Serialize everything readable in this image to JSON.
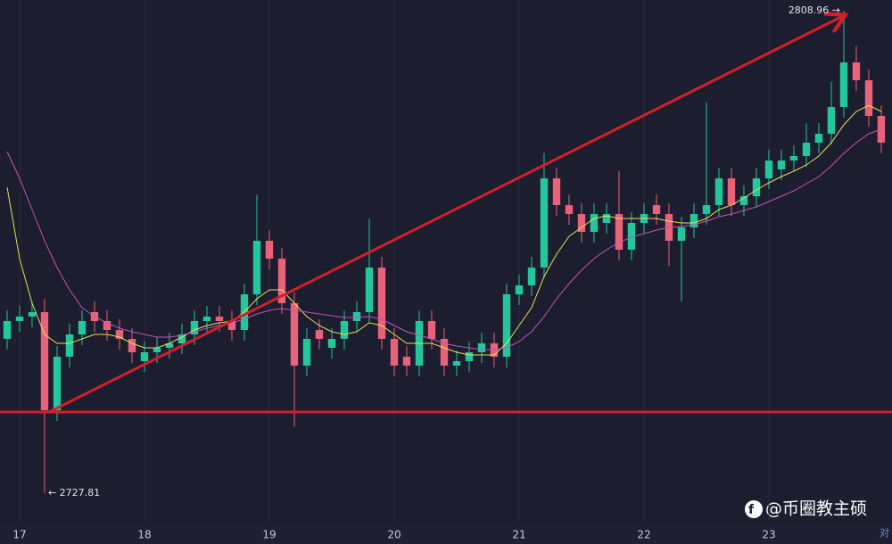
{
  "chart_data": {
    "type": "candlestick",
    "xticks": [
      {
        "value": 1,
        "label": "17"
      },
      {
        "value": 11,
        "label": "18"
      },
      {
        "value": 21,
        "label": "19"
      },
      {
        "value": 31,
        "label": "20"
      },
      {
        "value": 41,
        "label": "21"
      },
      {
        "value": 51,
        "label": "22"
      },
      {
        "value": 61,
        "label": "23"
      }
    ],
    "xlim": [
      -0.57,
      70.86
    ],
    "ylim": [
      2723.0,
      2810.75
    ],
    "grid": true,
    "up_color": "#22c79c",
    "down_color": "#e8627a",
    "open": [
      2753.75,
      2756.75,
      2757.5,
      2758.25,
      2741.75,
      2750.75,
      2754.5,
      2758.25,
      2756.75,
      2755.25,
      2753.75,
      2750.0,
      2751.5,
      2752.25,
      2753.0,
      2754.5,
      2756.75,
      2757.5,
      2756.75,
      2755.25,
      2761.25,
      2770.25,
      2767.25,
      2759.75,
      2749.25,
      2755.25,
      2752.25,
      2753.75,
      2756.75,
      2758.25,
      2765.75,
      2753.75,
      2750.75,
      2749.25,
      2756.75,
      2753.75,
      2749.25,
      2750.0,
      2751.5,
      2753.0,
      2750.75,
      2761.25,
      2762.75,
      2765.75,
      2780.75,
      2776.25,
      2774.75,
      2771.75,
      2773.25,
      2774.75,
      2768.75,
      2773.25,
      2776.25,
      2774.75,
      2770.25,
      2772.5,
      2774.75,
      2776.25,
      2780.75,
      2776.25,
      2777.75,
      2780.75,
      2782.25,
      2783.75,
      2784.5,
      2786.75,
      2788.25,
      2792.75,
      2800.25,
      2797.25,
      2791.25
    ],
    "high": [
      2758.55,
      2759.3,
      2760.05,
      2760.5,
      2752.55,
      2756.3,
      2758.55,
      2760.05,
      2758.55,
      2757.05,
      2755.55,
      2753.3,
      2754.05,
      2754.8,
      2756.3,
      2758.55,
      2759.3,
      2759.3,
      2758.55,
      2763.05,
      2778.0,
      2772.05,
      2769.05,
      2761.55,
      2755.55,
      2757.05,
      2755.55,
      2758.55,
      2760.05,
      2774.0,
      2767.55,
      2755.55,
      2752.55,
      2758.55,
      2758.55,
      2755.55,
      2751.8,
      2753.3,
      2754.8,
      2754.8,
      2763.05,
      2764.55,
      2767.55,
      2785.0,
      2782.55,
      2778.05,
      2776.55,
      2776.55,
      2776.55,
      2782.0,
      2775.05,
      2776.55,
      2778.05,
      2776.55,
      2774.3,
      2776.55,
      2793.5,
      2782.55,
      2782.55,
      2779.55,
      2782.55,
      2785.55,
      2785.55,
      2786.3,
      2790.0,
      2790.05,
      2797.0,
      2808.96,
      2803.0,
      2799.05,
      2793.05
    ],
    "low": [
      2751.95,
      2754.95,
      2755.7,
      2727.81,
      2739.95,
      2748.95,
      2752.7,
      2754.95,
      2753.45,
      2751.95,
      2749.7,
      2748.2,
      2749.7,
      2750.45,
      2751.2,
      2752.7,
      2754.95,
      2754.95,
      2753.45,
      2753.45,
      2759.45,
      2765.45,
      2757.95,
      2739.0,
      2747.45,
      2751.95,
      2750.45,
      2751.95,
      2754.95,
      2756.45,
      2751.95,
      2747.45,
      2747.45,
      2747.45,
      2751.95,
      2747.45,
      2747.45,
      2748.2,
      2749.7,
      2748.95,
      2748.95,
      2759.45,
      2760.95,
      2763.95,
      2774.45,
      2772.95,
      2769.95,
      2769.95,
      2771.45,
      2766.95,
      2766.95,
      2771.45,
      2772.95,
      2766.0,
      2760.0,
      2770.7,
      2772.95,
      2774.45,
      2774.45,
      2774.45,
      2775.95,
      2778.95,
      2780.45,
      2781.95,
      2782.7,
      2784.95,
      2786.45,
      2790.95,
      2795.45,
      2789.45,
      2784.95
    ],
    "close": [
      2756.75,
      2757.5,
      2758.25,
      2741.75,
      2750.75,
      2754.5,
      2756.75,
      2756.75,
      2755.25,
      2753.75,
      2751.5,
      2751.5,
      2752.25,
      2753.0,
      2754.5,
      2756.75,
      2757.5,
      2756.75,
      2755.25,
      2761.25,
      2770.25,
      2767.25,
      2759.75,
      2749.25,
      2753.75,
      2753.75,
      2753.75,
      2756.75,
      2758.25,
      2765.75,
      2753.75,
      2749.25,
      2749.25,
      2756.75,
      2753.75,
      2749.25,
      2750.0,
      2751.5,
      2753.0,
      2750.75,
      2761.25,
      2762.75,
      2765.75,
      2780.75,
      2776.25,
      2774.75,
      2771.75,
      2774.75,
      2774.75,
      2768.75,
      2773.25,
      2774.75,
      2774.75,
      2770.25,
      2772.5,
      2774.75,
      2776.25,
      2780.75,
      2776.25,
      2777.75,
      2780.75,
      2783.75,
      2783.75,
      2784.5,
      2786.75,
      2788.25,
      2792.75,
      2800.25,
      2797.25,
      2791.25,
      2786.75
    ],
    "series": [
      {
        "color": "#e6e05a",
        "values": [
          2779.25,
          2767.25,
          2759.75,
          2754.5,
          2753.0,
          2753.0,
          2753.75,
          2754.5,
          2754.5,
          2754.05,
          2753.0,
          2752.25,
          2752.25,
          2753.0,
          2754.05,
          2755.25,
          2756.0,
          2756.45,
          2756.75,
          2758.25,
          2760.5,
          2762.0,
          2762.0,
          2759.75,
          2757.5,
          2756.0,
          2754.95,
          2754.5,
          2754.95,
          2756.45,
          2756.0,
          2754.5,
          2753.0,
          2753.0,
          2753.0,
          2752.25,
          2751.5,
          2751.05,
          2751.05,
          2751.05,
          2753.0,
          2756.0,
          2759.0,
          2764.25,
          2768.0,
          2771.0,
          2772.5,
          2774.0,
          2774.45,
          2774.0,
          2774.0,
          2774.0,
          2774.0,
          2773.55,
          2773.25,
          2773.25,
          2774.0,
          2775.5,
          2776.25,
          2777.45,
          2778.8,
          2780.0,
          2781.05,
          2781.95,
          2783.0,
          2784.5,
          2786.75,
          2789.75,
          2792.0,
          2793.05,
          2792.0
        ]
      },
      {
        "color": "#c455b8",
        "values": [
          2785.25,
          2780.75,
          2775.5,
          2770.25,
          2765.75,
          2762.0,
          2759.0,
          2757.5,
          2756.45,
          2755.55,
          2754.95,
          2754.5,
          2754.05,
          2754.05,
          2754.35,
          2754.95,
          2755.55,
          2756.0,
          2756.45,
          2757.05,
          2757.95,
          2758.55,
          2758.85,
          2758.55,
          2758.25,
          2757.95,
          2757.65,
          2757.35,
          2757.35,
          2757.5,
          2757.05,
          2756.0,
          2754.95,
          2754.35,
          2753.75,
          2753.0,
          2752.55,
          2752.25,
          2751.95,
          2751.95,
          2752.25,
          2753.3,
          2754.95,
          2757.5,
          2760.5,
          2763.05,
          2765.3,
          2767.25,
          2768.75,
          2769.95,
          2770.85,
          2771.45,
          2772.05,
          2772.5,
          2772.65,
          2772.95,
          2773.55,
          2774.3,
          2774.75,
          2775.35,
          2775.95,
          2776.85,
          2777.75,
          2778.65,
          2779.85,
          2781.05,
          2782.85,
          2784.95,
          2786.75,
          2788.25,
          2789.0
        ]
      }
    ],
    "support_line": {
      "value": 2741.45,
      "color": "#d2202c"
    },
    "trend_line": {
      "from": [
        3.36,
        2741.45
      ],
      "to": [
        66.93,
        2808.05
      ],
      "color": "#d2202c"
    },
    "annotations": [
      {
        "text": "2808.96 →"
      },
      {
        "text": "← 2727.81"
      }
    ],
    "watermark": "@币圈教主硕",
    "corner_label": "对"
  }
}
